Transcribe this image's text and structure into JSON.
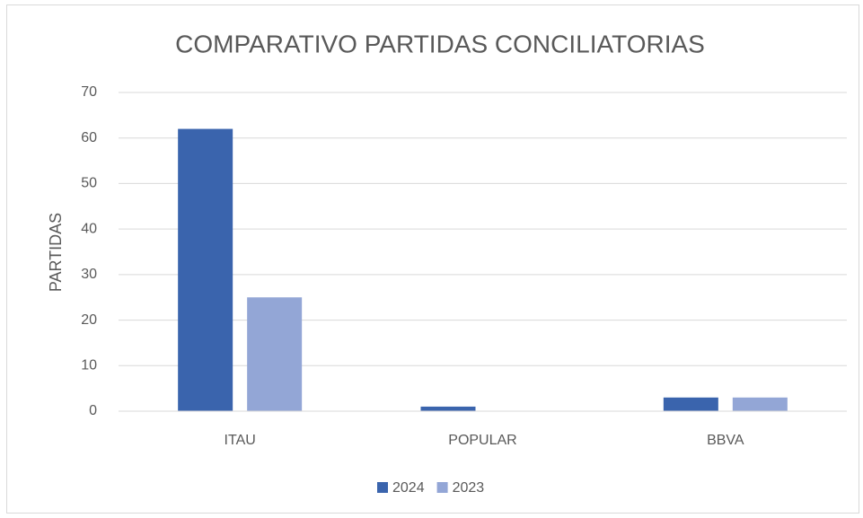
{
  "chart_data": {
    "type": "bar",
    "title": "COMPARATIVO PARTIDAS CONCILIATORIAS",
    "y_label": "PARTIDAS",
    "categories": [
      "ITAU",
      "POPULAR",
      "BBVA"
    ],
    "series": [
      {
        "name": "2024",
        "color": "#3a64ad",
        "values": [
          62,
          1,
          3
        ]
      },
      {
        "name": "2023",
        "color": "#93a6d6",
        "values": [
          25,
          0,
          3
        ]
      }
    ],
    "ylim": [
      0,
      70
    ],
    "yticks": [
      0,
      10,
      20,
      30,
      40,
      50,
      60,
      70
    ],
    "grid": true,
    "legend": "bottom"
  }
}
